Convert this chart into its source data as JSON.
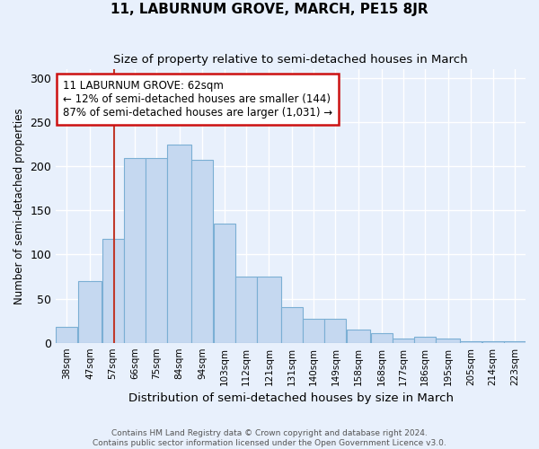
{
  "title": "11, LABURNUM GROVE, MARCH, PE15 8JR",
  "subtitle": "Size of property relative to semi-detached houses in March",
  "xlabel": "Distribution of semi-detached houses by size in March",
  "ylabel": "Number of semi-detached properties",
  "footer1": "Contains HM Land Registry data © Crown copyright and database right 2024.",
  "footer2": "Contains public sector information licensed under the Open Government Licence v3.0.",
  "property_label": "11 LABURNUM GROVE: 62sqm",
  "annotation_line1": "← 12% of semi-detached houses are smaller (144)",
  "annotation_line2": "87% of semi-detached houses are larger (1,031) →",
  "bin_edges": [
    38,
    47,
    57,
    66,
    75,
    84,
    94,
    103,
    112,
    121,
    131,
    140,
    149,
    158,
    168,
    177,
    186,
    195,
    205,
    214,
    223,
    232
  ],
  "bin_labels": [
    "38sqm",
    "47sqm",
    "57sqm",
    "66sqm",
    "75sqm",
    "84sqm",
    "94sqm",
    "103sqm",
    "112sqm",
    "121sqm",
    "131sqm",
    "140sqm",
    "149sqm",
    "158sqm",
    "168sqm",
    "177sqm",
    "186sqm",
    "195sqm",
    "205sqm",
    "214sqm",
    "223sqm"
  ],
  "bar_values": [
    18,
    70,
    118,
    209,
    209,
    225,
    207,
    135,
    75,
    75,
    40,
    27,
    27,
    15,
    11,
    5,
    7,
    5,
    2,
    2,
    2
  ],
  "bar_color": "#c5d8f0",
  "bar_edge_color": "#7bafd4",
  "vline_x": 62,
  "vline_color": "#c0392b",
  "annotation_box_color": "#ffffff",
  "annotation_box_edge": "#cc1111",
  "bg_color": "#e8f0fc",
  "grid_color": "#ffffff",
  "ylim": [
    0,
    310
  ],
  "yticks": [
    0,
    50,
    100,
    150,
    200,
    250,
    300
  ]
}
